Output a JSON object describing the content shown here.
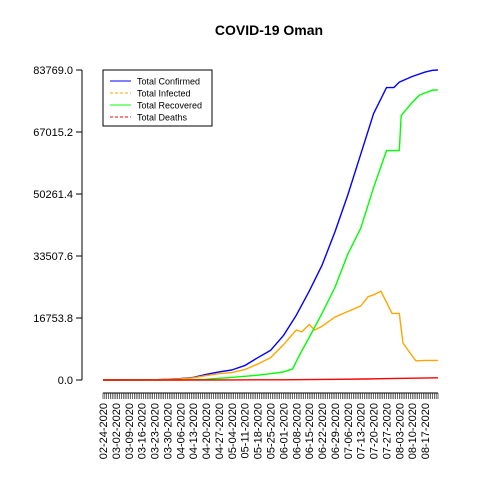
{
  "chart_data": {
    "type": "line",
    "title": "COVID-19 Oman",
    "xlabel": "",
    "ylabel": "",
    "ylim": [
      0,
      83769.0
    ],
    "y_ticks": [
      "0.0",
      "16753.8",
      "33507.6",
      "50261.4",
      "67015.2",
      "83769.0"
    ],
    "y_tick_values": [
      0,
      16753.8,
      33507.6,
      50261.4,
      67015.2,
      83769.0
    ],
    "x_start": "2020-02-24",
    "x_end": "2020-08-24",
    "x_tick_labels": [
      "02-24-2020",
      "03-02-2020",
      "03-09-2020",
      "03-16-2020",
      "03-23-2020",
      "03-30-2020",
      "04-06-2020",
      "04-13-2020",
      "04-20-2020",
      "04-27-2020",
      "05-04-2020",
      "05-11-2020",
      "05-18-2020",
      "05-25-2020",
      "06-01-2020",
      "06-08-2020",
      "06-15-2020",
      "06-22-2020",
      "06-29-2020",
      "07-06-2020",
      "07-13-2020",
      "07-20-2020",
      "07-27-2020",
      "08-03-2020",
      "08-10-2020",
      "08-17-2020"
    ],
    "legend_position": "top-left",
    "grid": false,
    "series": [
      {
        "name": "Total Confirmed",
        "color": "#0000ff",
        "dash": "solid",
        "points": [
          [
            "2020-02-24",
            2
          ],
          [
            "2020-03-09",
            18
          ],
          [
            "2020-03-23",
            55
          ],
          [
            "2020-03-30",
            210
          ],
          [
            "2020-04-06",
            370
          ],
          [
            "2020-04-13",
            700
          ],
          [
            "2020-04-20",
            1500
          ],
          [
            "2020-04-27",
            2200
          ],
          [
            "2020-05-04",
            2700
          ],
          [
            "2020-05-11",
            3900
          ],
          [
            "2020-05-18",
            6000
          ],
          [
            "2020-05-25",
            8000
          ],
          [
            "2020-06-01",
            12000
          ],
          [
            "2020-06-08",
            17500
          ],
          [
            "2020-06-15",
            24000
          ],
          [
            "2020-06-22",
            31000
          ],
          [
            "2020-06-29",
            40000
          ],
          [
            "2020-07-06",
            50000
          ],
          [
            "2020-07-13",
            61000
          ],
          [
            "2020-07-20",
            72000
          ],
          [
            "2020-07-27",
            79000
          ],
          [
            "2020-07-31",
            79000
          ],
          [
            "2020-08-03",
            80500
          ],
          [
            "2020-08-10",
            82000
          ],
          [
            "2020-08-17",
            83200
          ],
          [
            "2020-08-21",
            83700
          ],
          [
            "2020-08-24",
            83769
          ]
        ]
      },
      {
        "name": "Total Infected",
        "color": "#ffa500",
        "dash": "solid",
        "points": [
          [
            "2020-02-24",
            2
          ],
          [
            "2020-03-09",
            16
          ],
          [
            "2020-03-23",
            45
          ],
          [
            "2020-03-30",
            180
          ],
          [
            "2020-04-06",
            320
          ],
          [
            "2020-04-13",
            600
          ],
          [
            "2020-04-20",
            1200
          ],
          [
            "2020-04-27",
            1700
          ],
          [
            "2020-05-04",
            2000
          ],
          [
            "2020-05-11",
            2800
          ],
          [
            "2020-05-18",
            4300
          ],
          [
            "2020-05-25",
            6000
          ],
          [
            "2020-06-01",
            9500
          ],
          [
            "2020-06-08",
            13500
          ],
          [
            "2020-06-11",
            13000
          ],
          [
            "2020-06-15",
            15000
          ],
          [
            "2020-06-18",
            13500
          ],
          [
            "2020-06-22",
            14500
          ],
          [
            "2020-06-29",
            17000
          ],
          [
            "2020-07-06",
            18500
          ],
          [
            "2020-07-13",
            20000
          ],
          [
            "2020-07-17",
            22500
          ],
          [
            "2020-07-20",
            23000
          ],
          [
            "2020-07-24",
            24000
          ],
          [
            "2020-07-27",
            21000
          ],
          [
            "2020-07-30",
            18000
          ],
          [
            "2020-08-03",
            18000
          ],
          [
            "2020-08-05",
            10000
          ],
          [
            "2020-08-10",
            6500
          ],
          [
            "2020-08-12",
            5200
          ],
          [
            "2020-08-17",
            5300
          ],
          [
            "2020-08-24",
            5300
          ]
        ]
      },
      {
        "name": "Total Recovered",
        "color": "#00ff00",
        "dash": "solid",
        "points": [
          [
            "2020-02-24",
            0
          ],
          [
            "2020-03-23",
            5
          ],
          [
            "2020-04-06",
            20
          ],
          [
            "2020-04-20",
            200
          ],
          [
            "2020-04-27",
            450
          ],
          [
            "2020-05-04",
            700
          ],
          [
            "2020-05-11",
            1000
          ],
          [
            "2020-05-18",
            1300
          ],
          [
            "2020-05-25",
            1700
          ],
          [
            "2020-06-01",
            2200
          ],
          [
            "2020-06-06",
            3000
          ],
          [
            "2020-06-10",
            7000
          ],
          [
            "2020-06-15",
            11500
          ],
          [
            "2020-06-22",
            18000
          ],
          [
            "2020-06-29",
            25000
          ],
          [
            "2020-07-06",
            34000
          ],
          [
            "2020-07-13",
            41000
          ],
          [
            "2020-07-20",
            52000
          ],
          [
            "2020-07-27",
            62000
          ],
          [
            "2020-07-31",
            62000
          ],
          [
            "2020-08-03",
            62000
          ],
          [
            "2020-08-04",
            71500
          ],
          [
            "2020-08-10",
            75000
          ],
          [
            "2020-08-14",
            77000
          ],
          [
            "2020-08-21",
            78300
          ],
          [
            "2020-08-24",
            78400
          ]
        ]
      },
      {
        "name": "Total Deaths",
        "color": "#ff0000",
        "dash": "dashed",
        "points": [
          [
            "2020-02-24",
            0
          ],
          [
            "2020-04-06",
            2
          ],
          [
            "2020-05-04",
            15
          ],
          [
            "2020-06-01",
            60
          ],
          [
            "2020-06-15",
            120
          ],
          [
            "2020-07-01",
            190
          ],
          [
            "2020-07-15",
            280
          ],
          [
            "2020-08-01",
            420
          ],
          [
            "2020-08-15",
            520
          ],
          [
            "2020-08-24",
            600
          ]
        ]
      }
    ]
  }
}
